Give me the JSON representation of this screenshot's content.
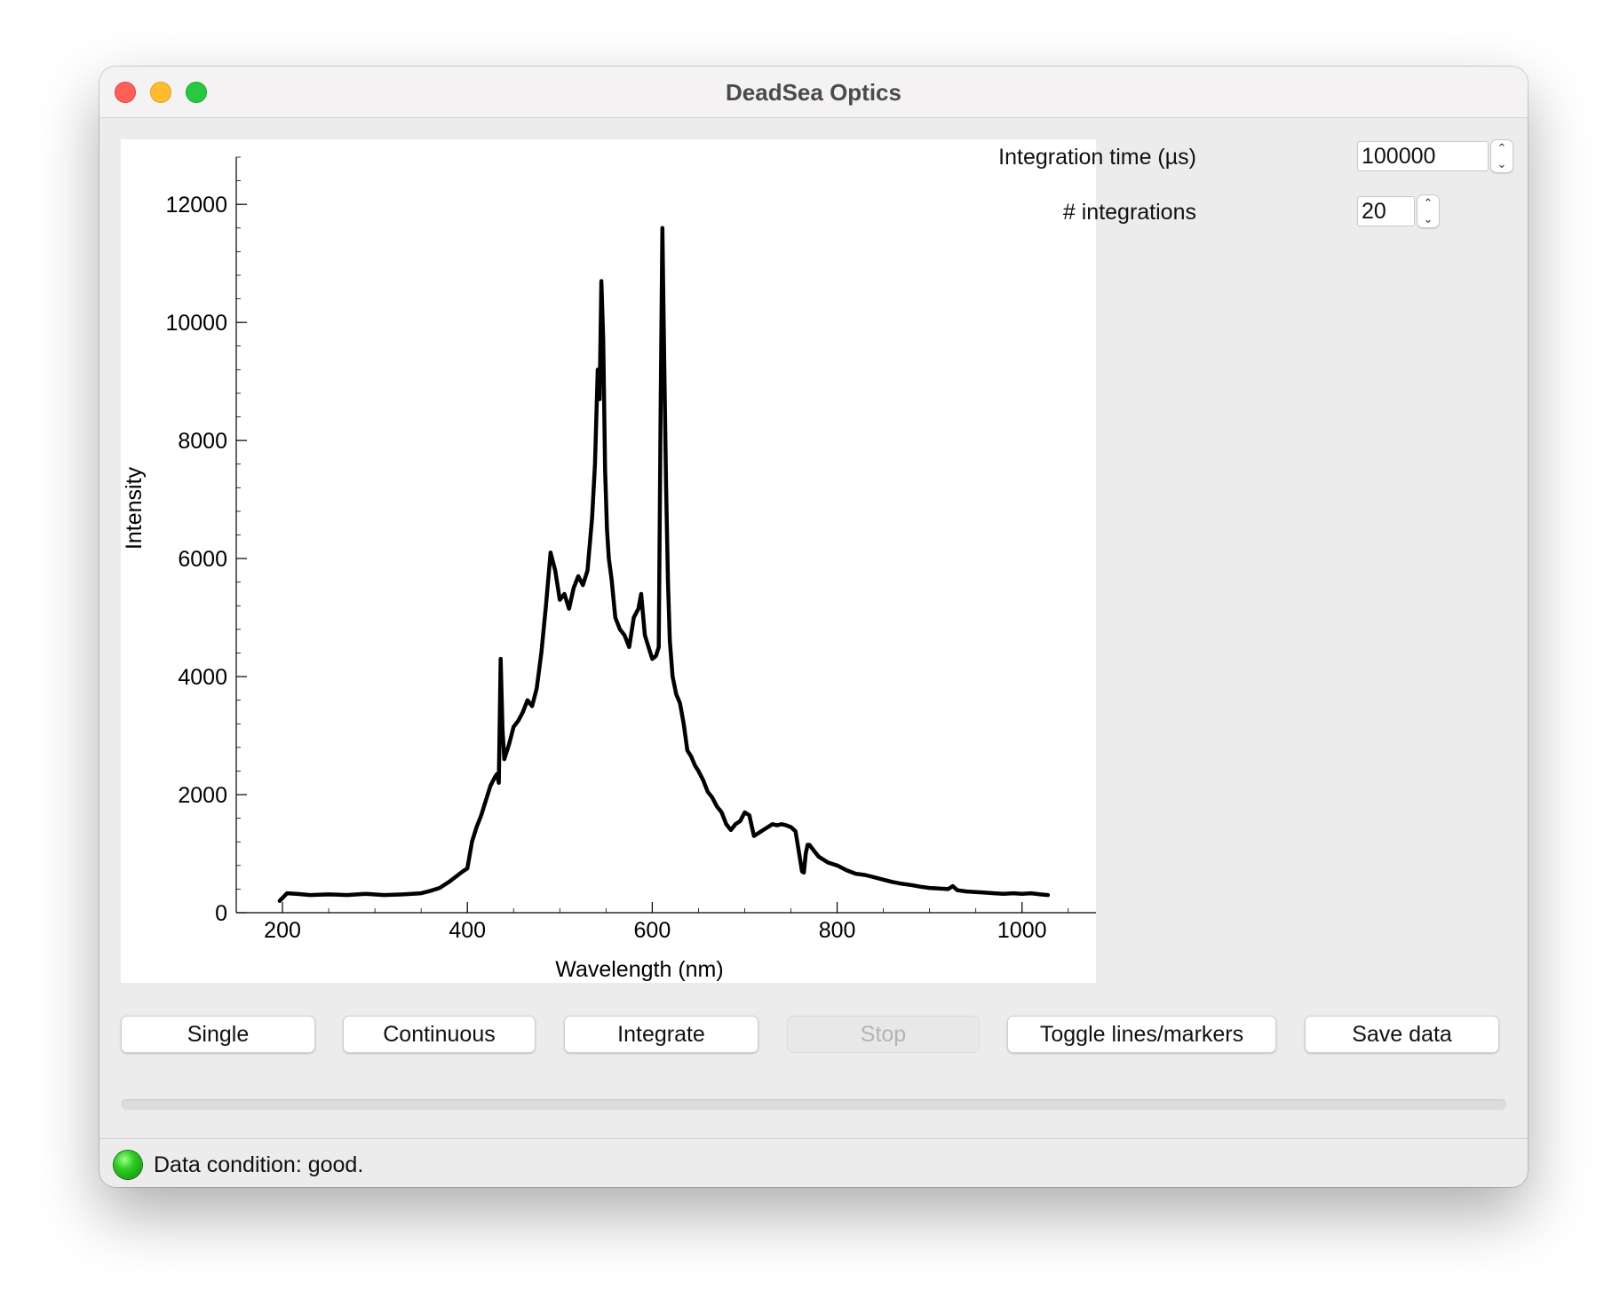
{
  "window": {
    "title": "DeadSea Optics"
  },
  "controls": {
    "integration_time": {
      "label": "Integration time (µs)",
      "value": "100000"
    },
    "num_integrations": {
      "label": "# integrations",
      "value": "20"
    }
  },
  "buttons": {
    "single": "Single",
    "continuous": "Continuous",
    "integrate": "Integrate",
    "stop": "Stop",
    "toggle": "Toggle lines/markers",
    "save": "Save data"
  },
  "progress": {
    "fraction": 0
  },
  "status": {
    "text": "Data condition: good.",
    "indicator_color": "#2dcc21"
  },
  "chart_data": {
    "type": "line",
    "xlabel": "Wavelength (nm)",
    "ylabel": "Intensity",
    "xlim": [
      150,
      1080
    ],
    "ylim": [
      0,
      12800
    ],
    "x_ticks": [
      200,
      400,
      600,
      800,
      1000
    ],
    "y_ticks": [
      0,
      2000,
      4000,
      6000,
      8000,
      10000,
      12000
    ],
    "grid": false,
    "line_color": "#000000",
    "series": [
      {
        "x": [
          197,
          205,
          215,
          230,
          250,
          270,
          290,
          310,
          330,
          350,
          360,
          370,
          380,
          390,
          395,
          400,
          405,
          410,
          415,
          420,
          425,
          430,
          432,
          434,
          436,
          438,
          440,
          445,
          450,
          455,
          460,
          465,
          470,
          475,
          480,
          485,
          490,
          495,
          500,
          505,
          510,
          515,
          520,
          525,
          530,
          535,
          538,
          541,
          543,
          545,
          547,
          549,
          551,
          553,
          556,
          560,
          565,
          570,
          575,
          580,
          585,
          588,
          592,
          596,
          600,
          604,
          607,
          609,
          611,
          613,
          615,
          617,
          619,
          622,
          626,
          630,
          634,
          638,
          642,
          646,
          650,
          655,
          660,
          665,
          670,
          675,
          680,
          685,
          690,
          695,
          700,
          705,
          710,
          715,
          720,
          725,
          730,
          735,
          740,
          745,
          750,
          755,
          760,
          762,
          764,
          766,
          768,
          770,
          775,
          780,
          790,
          800,
          810,
          820,
          830,
          840,
          850,
          860,
          870,
          880,
          890,
          900,
          910,
          920,
          925,
          930,
          940,
          950,
          960,
          970,
          980,
          990,
          1000,
          1010,
          1020,
          1028
        ],
        "y": [
          200,
          330,
          320,
          300,
          310,
          300,
          320,
          300,
          310,
          330,
          370,
          420,
          520,
          640,
          700,
          750,
          1200,
          1450,
          1650,
          1900,
          2150,
          2300,
          2350,
          2200,
          4300,
          3100,
          2600,
          2850,
          3150,
          3250,
          3400,
          3600,
          3500,
          3800,
          4400,
          5200,
          6100,
          5800,
          5300,
          5400,
          5150,
          5500,
          5700,
          5550,
          5800,
          6700,
          7600,
          9200,
          8700,
          10700,
          9700,
          7500,
          6500,
          6000,
          5650,
          5000,
          4800,
          4700,
          4500,
          5000,
          5150,
          5400,
          4700,
          4500,
          4300,
          4350,
          4500,
          8500,
          11600,
          9300,
          7200,
          5600,
          4600,
          4000,
          3700,
          3550,
          3200,
          2750,
          2650,
          2500,
          2400,
          2250,
          2050,
          1950,
          1800,
          1700,
          1500,
          1400,
          1500,
          1550,
          1700,
          1650,
          1300,
          1350,
          1400,
          1450,
          1500,
          1480,
          1500,
          1480,
          1450,
          1380,
          900,
          700,
          680,
          1000,
          1150,
          1150,
          1050,
          950,
          850,
          800,
          720,
          660,
          640,
          600,
          560,
          520,
          490,
          470,
          440,
          420,
          410,
          400,
          450,
          380,
          360,
          350,
          340,
          330,
          320,
          330,
          320,
          330,
          310,
          300
        ]
      }
    ]
  }
}
